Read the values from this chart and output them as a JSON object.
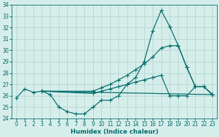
{
  "title": "",
  "xlabel": "Humidex (Indice chaleur)",
  "ylabel": "",
  "xlim": [
    -0.5,
    23.5
  ],
  "ylim": [
    24,
    34
  ],
  "yticks": [
    24,
    25,
    26,
    27,
    28,
    29,
    30,
    31,
    32,
    33,
    34
  ],
  "xticks": [
    0,
    1,
    2,
    3,
    4,
    5,
    6,
    7,
    8,
    9,
    10,
    11,
    12,
    13,
    14,
    15,
    16,
    17,
    18,
    19,
    20,
    21,
    22,
    23
  ],
  "xtick_labels": [
    "0",
    "1",
    "2",
    "3",
    "4",
    "5",
    "6",
    "7",
    "8",
    "9",
    "10",
    "11",
    "12",
    "13",
    "14",
    "15",
    "16",
    "17",
    "18",
    "19",
    "20",
    "21",
    "22",
    "23"
  ],
  "background_color": "#d6eeea",
  "line_color": "#006b6b",
  "grid_color": "#b8d8d4",
  "series": [
    {
      "x": [
        0,
        1,
        2,
        3,
        4,
        5,
        6,
        7,
        8,
        9,
        10,
        11,
        12,
        13,
        14,
        15,
        16,
        17,
        18,
        19,
        20,
        21,
        22,
        23
      ],
      "y": [
        25.8,
        26.6,
        26.3,
        26.4,
        26.1,
        25.0,
        24.6,
        24.4,
        24.4,
        25.0,
        25.6,
        25.6,
        26.0,
        27.0,
        27.6,
        29.0,
        31.7,
        33.5,
        32.1,
        30.4,
        28.5,
        26.8,
        26.8,
        26.1
      ]
    },
    {
      "x": [
        3,
        9,
        10,
        11,
        12,
        13,
        14,
        15,
        16,
        17,
        18,
        19,
        20,
        21,
        22,
        23
      ],
      "y": [
        26.4,
        26.4,
        26.7,
        27.0,
        27.4,
        27.8,
        28.3,
        28.8,
        29.4,
        30.2,
        30.4,
        30.4,
        28.5,
        26.8,
        26.8,
        26.1
      ]
    },
    {
      "x": [
        3,
        9,
        10,
        11,
        12,
        13,
        14,
        15,
        16,
        17,
        18,
        19,
        20,
        21,
        22,
        23
      ],
      "y": [
        26.4,
        26.2,
        26.4,
        26.6,
        26.8,
        27.0,
        27.2,
        27.4,
        27.6,
        27.8,
        26.0,
        26.0,
        26.0,
        26.8,
        26.8,
        26.1
      ]
    },
    {
      "x": [
        3,
        23
      ],
      "y": [
        26.4,
        26.1
      ]
    }
  ]
}
